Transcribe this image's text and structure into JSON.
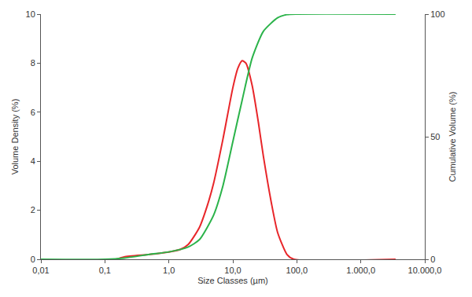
{
  "chart_data": {
    "type": "line",
    "x_label": "Size Classes (µm)",
    "y_label": "Volume Density (%)",
    "y2_label": "Cumulative Volume (%)",
    "log": "x",
    "grid": false,
    "xlim": [
      0.01,
      10000
    ],
    "xticks": [
      {
        "value": 0.01,
        "label": "0,01"
      },
      {
        "value": 0.1,
        "label": "0,1"
      },
      {
        "value": 1,
        "label": "1,0"
      },
      {
        "value": 10,
        "label": "10,0"
      },
      {
        "value": 100,
        "label": "100,0"
      },
      {
        "value": 1000,
        "label": "1.000,0"
      },
      {
        "value": 10000,
        "label": "10.000,0"
      }
    ],
    "ylim": [
      0,
      10
    ],
    "yticks": [
      0,
      2,
      4,
      6,
      8,
      10
    ],
    "y2lim": [
      0,
      100
    ],
    "y2ticks": [
      0,
      50,
      100
    ],
    "series": [
      {
        "color": "#e8262a",
        "x": [
          0.15,
          0.2,
          0.5,
          1,
          1.5,
          2,
          3,
          4,
          5,
          7,
          10,
          12,
          14,
          16,
          20,
          25,
          30,
          40,
          50,
          70,
          90,
          3500
        ],
        "values": [
          0,
          0.1,
          0.2,
          0.3,
          0.4,
          0.6,
          1.3,
          2.2,
          3.1,
          4.9,
          7.0,
          7.8,
          8.1,
          8.0,
          7.1,
          5.6,
          4.2,
          2.3,
          1.1,
          0.2,
          0,
          0
        ]
      },
      {
        "color": "#2bb34a",
        "axis": "y2",
        "x": [
          0.01,
          0.1,
          0.2,
          0.5,
          1,
          2,
          3,
          5,
          7,
          10,
          14,
          20,
          30,
          50,
          70,
          100,
          3500
        ],
        "values": [
          0,
          0,
          0.5,
          2,
          3,
          5,
          8,
          18,
          30,
          48,
          65,
          82,
          93,
          98.5,
          99.8,
          100,
          100
        ]
      }
    ]
  }
}
